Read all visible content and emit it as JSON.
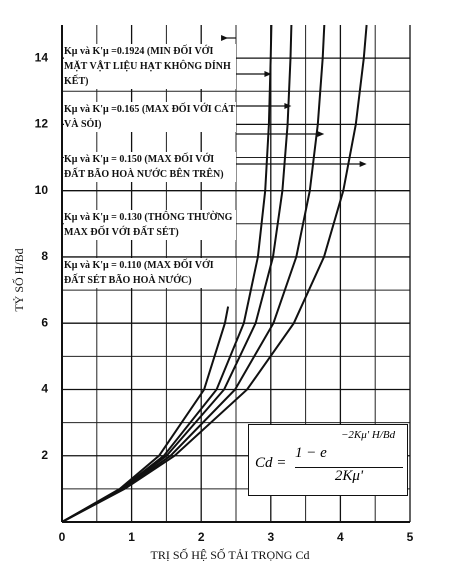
{
  "chart_data": {
    "type": "line",
    "x_label": "TRỊ SỐ HỆ SỐ TẢI TRỌNG Cd",
    "y_label": "TỶ SỐ H/Bd",
    "xlim": [
      0,
      5
    ],
    "ylim": [
      0,
      15
    ],
    "xticks": [
      0,
      1,
      2,
      3,
      4,
      5
    ],
    "yticks": [
      2,
      4,
      6,
      8,
      10,
      12,
      14
    ],
    "minor_xticks": [
      0.5,
      1.5,
      2.5,
      3.5,
      4.5
    ],
    "minor_yticks": [
      1,
      3,
      5,
      7,
      9,
      11,
      13
    ],
    "grid": true,
    "formula": {
      "lhs": "Cd =",
      "numerator": "1 − e",
      "exponent": "−2Kμ' H/Bd",
      "denominator": "2Kμ'"
    },
    "series": [
      {
        "name": "Kμ và K'μ =0.1924 (MIN ĐỐI VỚI MẶT VẬT LIỆU HẠT KHÔNG DÍNH KẾT)",
        "color": "#111111",
        "x": [
          0,
          0.83,
          1.395,
          2.041,
          2.34,
          2.386
        ],
        "values": [
          0,
          1,
          2,
          4,
          6,
          6.5
        ]
      },
      {
        "name": "Kμ và K'μ =0.165 (MAX ĐỐI VỚI CÁT VÀ SỎI)",
        "color": "#111111",
        "x": [
          0,
          0.852,
          1.464,
          2.221,
          2.612,
          2.814,
          2.919,
          2.972,
          2.999,
          3.009
        ],
        "values": [
          0,
          1,
          2,
          4,
          6,
          8,
          10,
          12,
          14,
          15
        ]
      },
      {
        "name": "Kμ và K'μ = 0.150 (MAX ĐỐI VỚI ĐẤT BÃO HOÀ NƯỚC BÊN TRÊN)",
        "color": "#111111",
        "x": [
          0,
          0.864,
          1.504,
          2.329,
          2.782,
          3.031,
          3.167,
          3.242,
          3.283,
          3.296
        ],
        "values": [
          0,
          1,
          2,
          4,
          6,
          8,
          10,
          12,
          14,
          15
        ]
      },
      {
        "name": "Kμ và K'μ = 0.130 (THÔNG THƯỜNG MAX ĐỐI VỚI ĐẤT SÉT)",
        "color": "#111111",
        "x": [
          0,
          0.88,
          1.56,
          2.487,
          3.038,
          3.366,
          3.561,
          3.676,
          3.745,
          3.768
        ],
        "values": [
          0,
          1,
          2,
          4,
          6,
          8,
          10,
          12,
          14,
          15
        ]
      },
      {
        "name": "Kμ và K'μ = 0.110 (MAX ĐỐI VỚI ĐẤT SÉT BÃO HOÀ NƯỚC)",
        "color": "#111111",
        "x": [
          0,
          0.898,
          1.618,
          2.66,
          3.331,
          3.764,
          4.042,
          4.221,
          4.336,
          4.377
        ],
        "values": [
          0,
          1,
          2,
          4,
          6,
          8,
          10,
          12,
          14,
          15
        ]
      }
    ]
  }
}
